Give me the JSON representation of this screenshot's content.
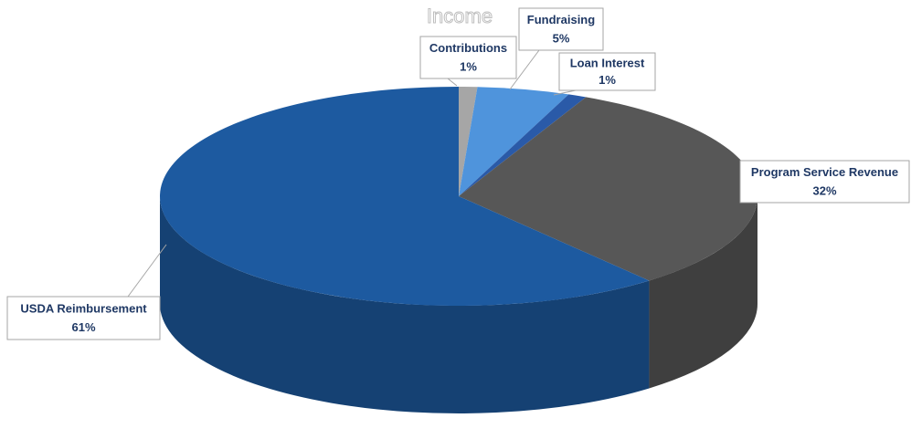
{
  "chart_data": {
    "type": "pie",
    "title": "Income",
    "categories": [
      "Contributions",
      "Fundraising",
      "Loan Interest",
      "Program Service Revenue",
      "USDA Reimbursement"
    ],
    "values": [
      1,
      5,
      1,
      32,
      61
    ],
    "value_labels": [
      "1%",
      "5%",
      "1%",
      "32%",
      "61%"
    ],
    "colors": [
      "#a6a6a6",
      "#4f94dc",
      "#2a5aa8",
      "#575757",
      "#1d5aa0"
    ]
  }
}
